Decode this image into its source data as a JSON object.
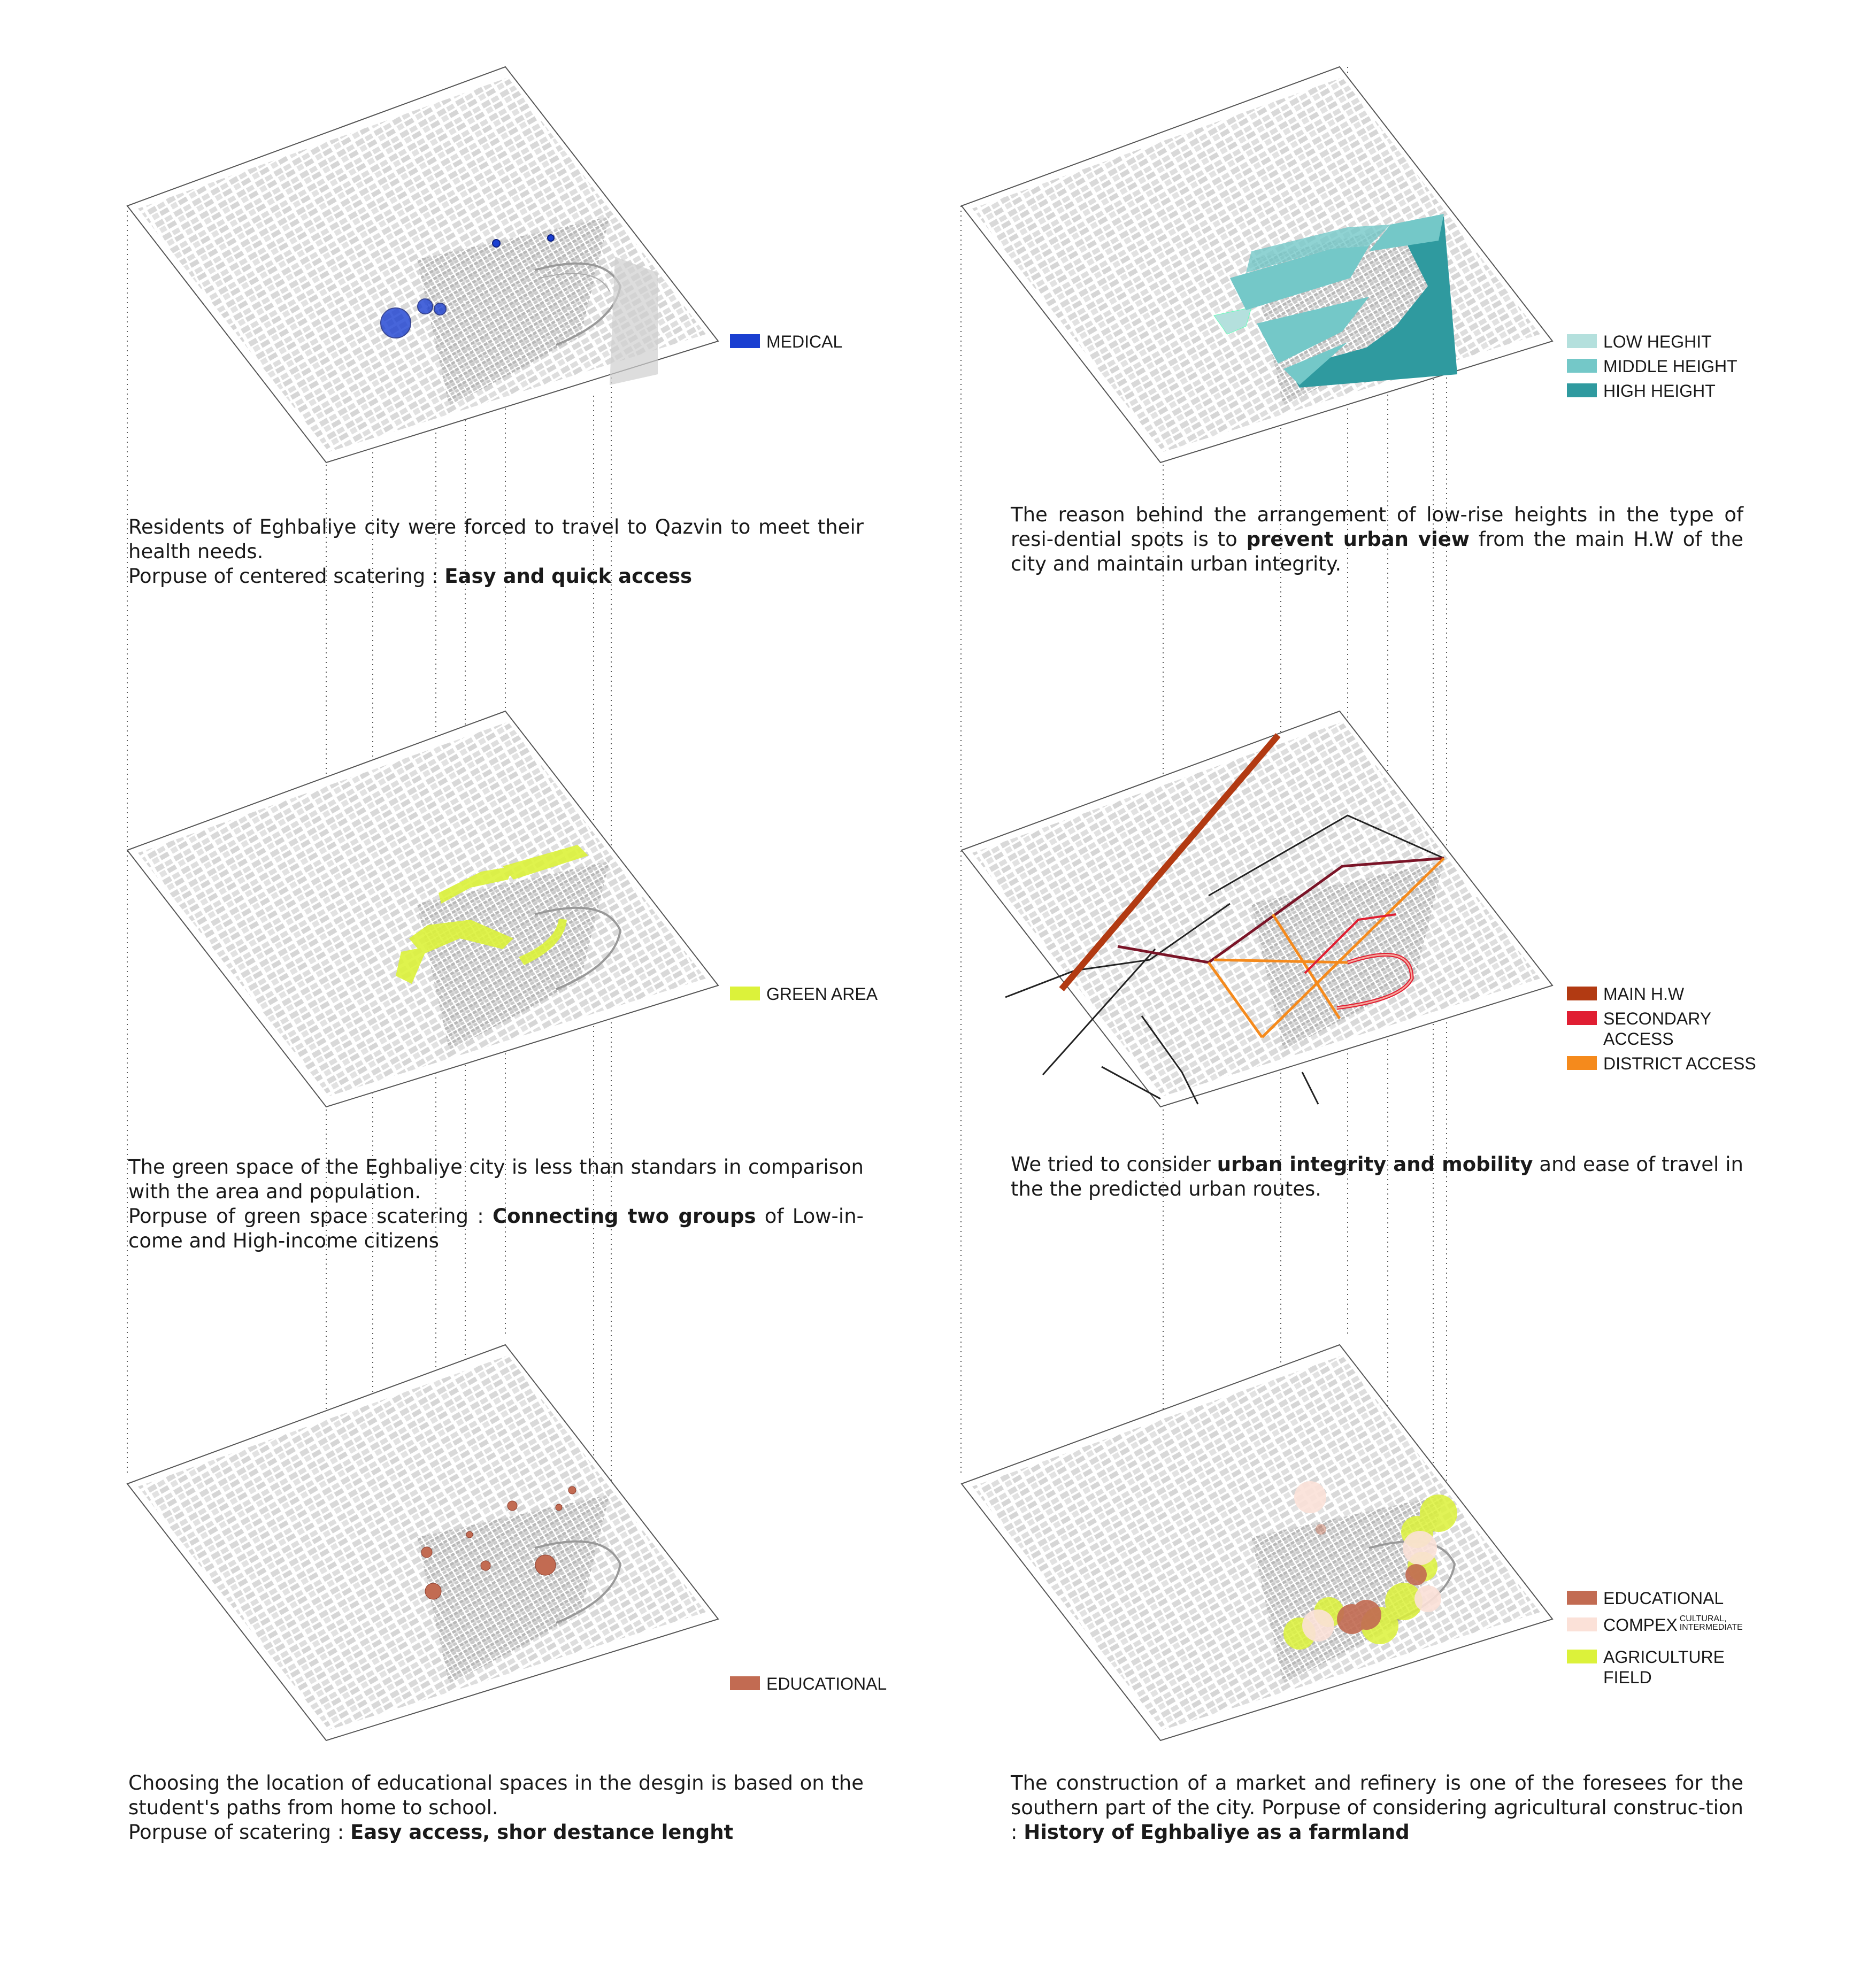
{
  "colors": {
    "medical": "#1a3fd1",
    "green_area": "#dcf23a",
    "educational": "#c26b52",
    "low_height": "#b4e0dd",
    "middle_height": "#74c8c8",
    "high_height": "#2f9a9f",
    "main_hw": "#b23a12",
    "secondary_access": "#e01e32",
    "district_access": "#f58a1c",
    "complex": "#fbe1d8",
    "agriculture_field": "#dcf23a"
  },
  "panels": {
    "medical": {
      "legend": [
        {
          "label": "MEDICAL",
          "color": "#1a3fd1"
        }
      ],
      "text": {
        "line1": "Residents of Eghbaliye city were forced to travel to Qazvin to meet their health needs.",
        "line2_plain": "Porpuse of centered scatering : ",
        "line2_bold": "Easy and quick access"
      }
    },
    "heights": {
      "legend": [
        {
          "label": "LOW HEGHIT",
          "color": "#b4e0dd"
        },
        {
          "label": "MIDDLE HEIGHT",
          "color": "#74c8c8"
        },
        {
          "label": "HIGH HEIGHT",
          "color": "#2f9a9f"
        }
      ],
      "text": {
        "part1": "The reason behind the arrangement of low-rise heights in the type of resi-dential spots is to ",
        "bold": "prevent urban view",
        "part2": " from the main H.W of the city and maintain urban integrity."
      }
    },
    "green": {
      "legend": [
        {
          "label": "GREEN AREA",
          "color": "#dcf23a"
        }
      ],
      "text": {
        "line1": "The green space of the Eghbaliye city is less than standars in comparison with the area and population.",
        "line2_plain": "Porpuse of green space scatering : ",
        "line2_bold": "Connecting two groups",
        "line2_rest": " of Low-in-come and High-income citizens"
      }
    },
    "access": {
      "legend": [
        {
          "label": "MAIN H.W",
          "color": "#b23a12"
        },
        {
          "label": "SECONDARY ACCESS",
          "color": "#e01e32"
        },
        {
          "label": "DISTRICT ACCESS",
          "color": "#f58a1c"
        }
      ],
      "text": {
        "part1": "We tried to consider ",
        "bold": "urban integrity and mobility",
        "part2": " and ease of travel in the the predicted urban routes."
      }
    },
    "educational": {
      "legend": [
        {
          "label": "EDUCATIONAL",
          "color": "#c26b52"
        }
      ],
      "text": {
        "line1": "Choosing the location of educational spaces in the desgin is based on the student's  paths from home to school.",
        "line2_plain": "Porpuse of scatering : ",
        "line2_bold": "Easy access, shor destance lenght"
      }
    },
    "market": {
      "legend": [
        {
          "label": "EDUCATIONAL",
          "color": "#c26b52"
        },
        {
          "label": "COMPEX",
          "small": "CULTURAL, INTERMEDIATE",
          "color": "#fbe1d8"
        },
        {
          "label": "AGRICULTURE FIELD",
          "color": "#dcf23a"
        }
      ],
      "text": {
        "part1": "The construction of a market and refinery is one of the foresees for the southern part of the city.  Porpuse of considering agricultural construc-tion : ",
        "bold": "History of Eghbaliye as a farmland"
      }
    }
  }
}
